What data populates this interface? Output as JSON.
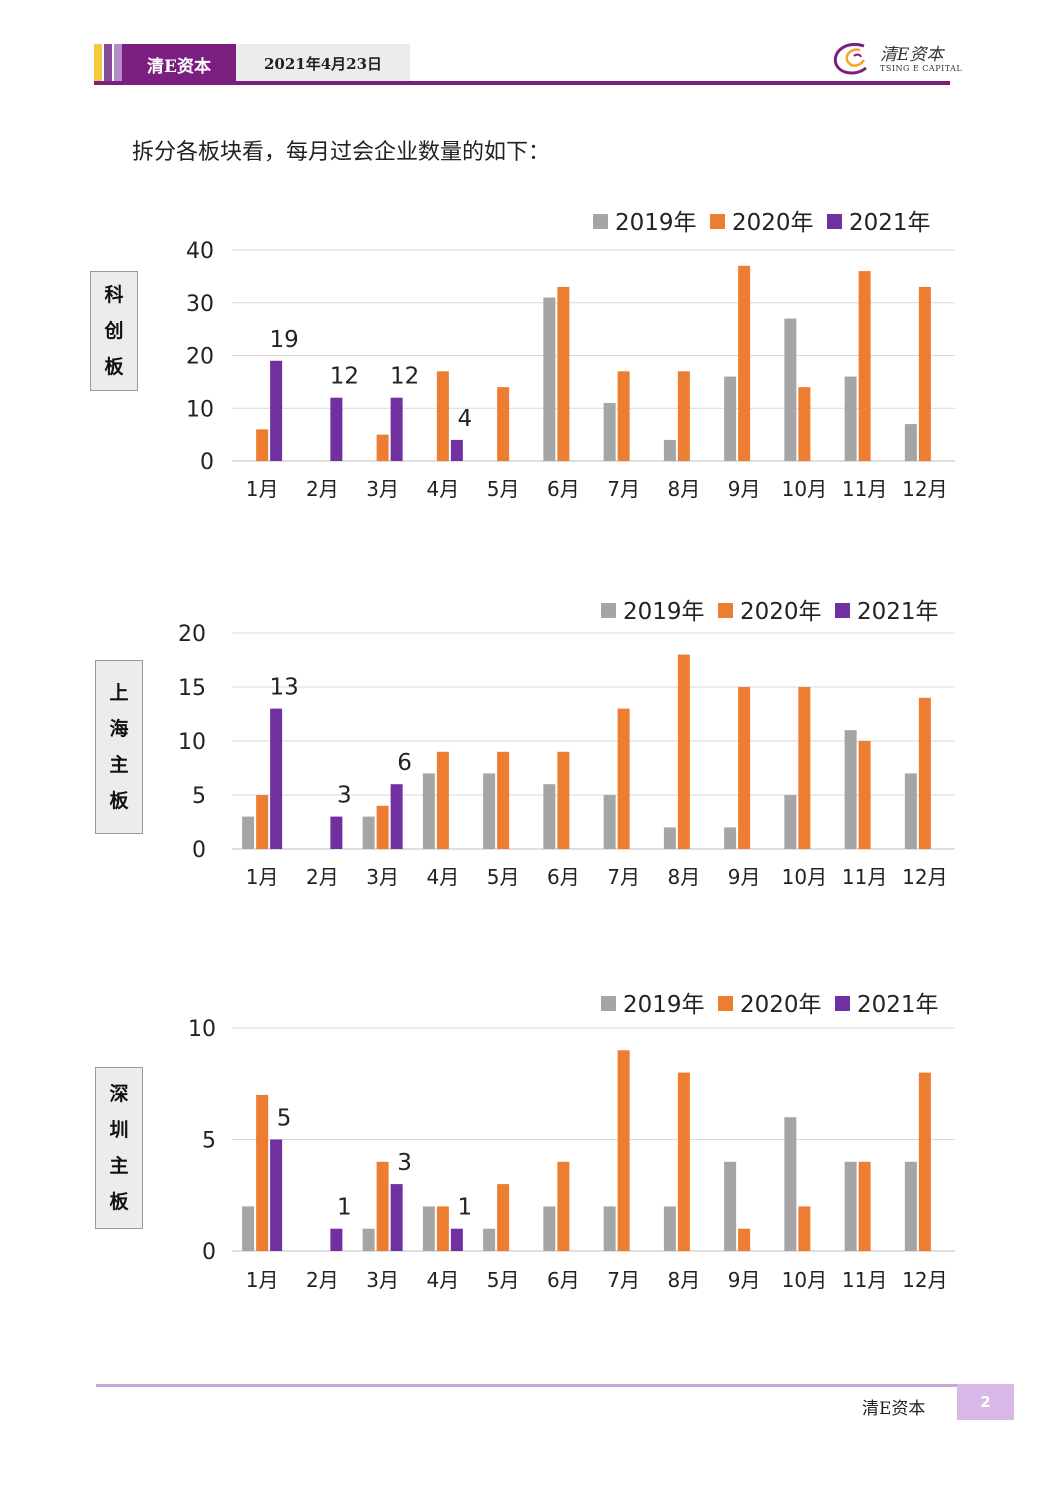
{
  "header": {
    "brand": "清E资本",
    "date": "2021年4月23日",
    "logo_cn": "清E资本",
    "logo_en": "TSING E CAPITAL",
    "stripe_colors": [
      "#f5c842",
      "#8a4a9a",
      "#b48cc8"
    ],
    "accent": "#7a1f7f"
  },
  "intro_text": "拆分各板块看，每月过会企业数量的如下：",
  "colors": {
    "2019年": "#a5a5a5",
    "2020年": "#ed7d31",
    "2021年": "#7030a0"
  },
  "chart_data": [
    {
      "type": "bar",
      "board_label": "科创板",
      "categories": [
        "1月",
        "2月",
        "3月",
        "4月",
        "5月",
        "6月",
        "7月",
        "8月",
        "9月",
        "10月",
        "11月",
        "12月"
      ],
      "series": [
        {
          "name": "2019年",
          "values": [
            0,
            0,
            0,
            0,
            0,
            31,
            11,
            4,
            16,
            27,
            16,
            7
          ]
        },
        {
          "name": "2020年",
          "values": [
            6,
            0,
            5,
            17,
            14,
            33,
            17,
            17,
            37,
            14,
            36,
            33
          ]
        },
        {
          "name": "2021年",
          "values": [
            19,
            12,
            12,
            4,
            0,
            0,
            0,
            0,
            0,
            0,
            0,
            0
          ]
        }
      ],
      "data_labels": [
        {
          "series": "2021年",
          "category": "1月",
          "text": "19"
        },
        {
          "series": "2021年",
          "category": "2月",
          "text": "12"
        },
        {
          "series": "2021年",
          "category": "3月",
          "text": "12"
        },
        {
          "series": "2021年",
          "category": "4月",
          "text": "4"
        }
      ],
      "ylim": [
        0,
        40
      ],
      "yticks": [
        0,
        10,
        20,
        30,
        40
      ],
      "grid": true,
      "legend": "top-right"
    },
    {
      "type": "bar",
      "board_label": "上海主板",
      "categories": [
        "1月",
        "2月",
        "3月",
        "4月",
        "5月",
        "6月",
        "7月",
        "8月",
        "9月",
        "10月",
        "11月",
        "12月"
      ],
      "series": [
        {
          "name": "2019年",
          "values": [
            3,
            0,
            3,
            7,
            7,
            6,
            5,
            2,
            2,
            5,
            11,
            7
          ]
        },
        {
          "name": "2020年",
          "values": [
            5,
            0,
            4,
            9,
            9,
            9,
            13,
            18,
            15,
            15,
            10,
            14
          ]
        },
        {
          "name": "2021年",
          "values": [
            13,
            3,
            6,
            0,
            0,
            0,
            0,
            0,
            0,
            0,
            0,
            0
          ]
        }
      ],
      "data_labels": [
        {
          "series": "2021年",
          "category": "1月",
          "text": "13"
        },
        {
          "series": "2021年",
          "category": "2月",
          "text": "3"
        },
        {
          "series": "2021年",
          "category": "3月",
          "text": "6"
        }
      ],
      "ylim": [
        0,
        20
      ],
      "yticks": [
        0,
        5,
        10,
        15,
        20
      ],
      "grid": true,
      "legend": "top-right"
    },
    {
      "type": "bar",
      "board_label": "深圳主板",
      "categories": [
        "1月",
        "2月",
        "3月",
        "4月",
        "5月",
        "6月",
        "7月",
        "8月",
        "9月",
        "10月",
        "11月",
        "12月"
      ],
      "series": [
        {
          "name": "2019年",
          "values": [
            2,
            0,
            1,
            2,
            1,
            2,
            2,
            2,
            4,
            6,
            4,
            4
          ]
        },
        {
          "name": "2020年",
          "values": [
            7,
            0,
            4,
            2,
            3,
            4,
            9,
            8,
            1,
            2,
            4,
            8
          ]
        },
        {
          "name": "2021年",
          "values": [
            5,
            1,
            3,
            1,
            0,
            0,
            0,
            0,
            0,
            0,
            0,
            0
          ]
        }
      ],
      "data_labels": [
        {
          "series": "2021年",
          "category": "1月",
          "text": "5"
        },
        {
          "series": "2021年",
          "category": "2月",
          "text": "1"
        },
        {
          "series": "2021年",
          "category": "3月",
          "text": "3"
        },
        {
          "series": "2021年",
          "category": "4月",
          "text": "1"
        }
      ],
      "ylim": [
        0,
        10
      ],
      "yticks": [
        0,
        5,
        10
      ],
      "grid": true,
      "legend": "top-right"
    }
  ],
  "footer": {
    "brand": "清E资本",
    "page": "2"
  }
}
